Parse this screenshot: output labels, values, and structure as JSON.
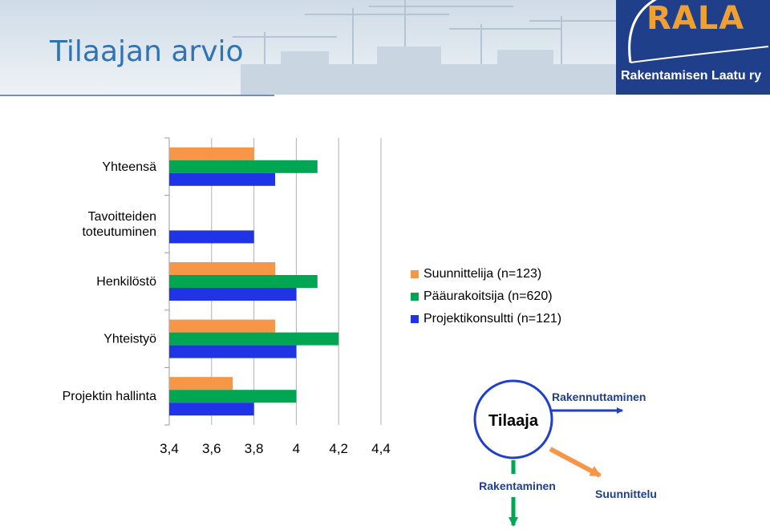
{
  "header": {
    "title": "Tilaajan arvio"
  },
  "logo": {
    "name": "RALA",
    "tagline": "Rakentamisen Laatu ry"
  },
  "chart_data": {
    "type": "bar",
    "orientation": "horizontal",
    "categories": [
      "Yhteensä",
      "Tavoitteiden toteutuminen",
      "Henkilöstö",
      "Yhteistyö",
      "Projektin hallinta"
    ],
    "category_lines": [
      [
        "Yhteensä"
      ],
      [
        "Tavoitteiden",
        "toteutuminen"
      ],
      [
        "Henkilöstö"
      ],
      [
        "Yhteistyö"
      ],
      [
        "Projektin hallinta"
      ]
    ],
    "series": [
      {
        "name": "Suunnittelija (n=123)",
        "color": "#f79646",
        "values": [
          3.8,
          null,
          3.9,
          3.9,
          3.7
        ]
      },
      {
        "name": "Pääurakoitsija (n=620)",
        "color": "#00a651",
        "values": [
          4.1,
          null,
          4.1,
          4.2,
          4.0
        ]
      },
      {
        "name": "Projektikonsultti (n=121)",
        "color": "#1f34e6",
        "values": [
          3.9,
          3.8,
          4.0,
          4.0,
          3.8
        ]
      }
    ],
    "xlim": [
      3.4,
      4.4
    ],
    "ticks": [
      "3,4",
      "3,6",
      "3,8",
      "4",
      "4,2",
      "4,4"
    ],
    "grid": true,
    "legend_position": "right"
  },
  "diagram": {
    "center": "Tilaaja",
    "labels": {
      "right": "Rakennuttaminen",
      "down": "Rakentaminen",
      "diagonal": "Suunnittelu"
    },
    "colors": {
      "circle": "#1f3fcc",
      "right_arrow": "#1f3fcc",
      "down_arrow": "#00a651",
      "diagonal_arrow": "#f79646"
    }
  }
}
